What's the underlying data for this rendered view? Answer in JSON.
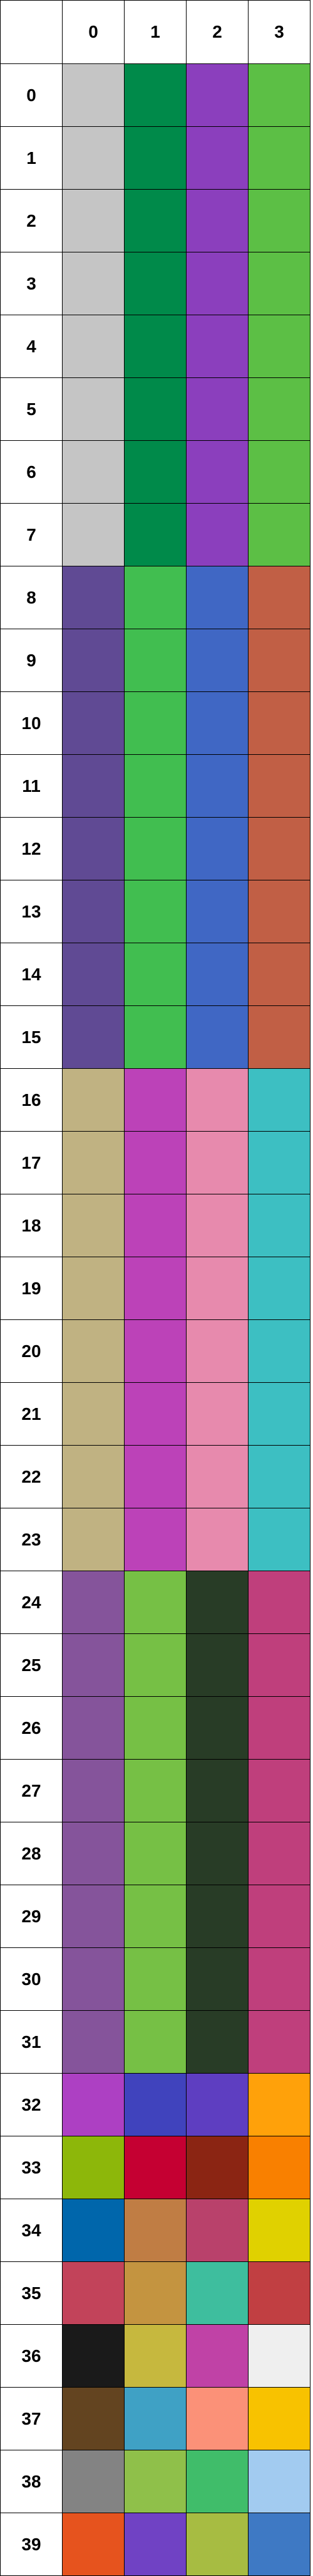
{
  "corner_label": "",
  "columns": [
    "0",
    "1",
    "2",
    "3"
  ],
  "rows": [
    {
      "label": "0",
      "colors": [
        "#c5c5c5",
        "#008a4a",
        "#8b3fbd",
        "#5cbf45"
      ]
    },
    {
      "label": "1",
      "colors": [
        "#c5c5c5",
        "#008a4a",
        "#8b3fbd",
        "#5cbf45"
      ]
    },
    {
      "label": "2",
      "colors": [
        "#c5c5c5",
        "#008a4a",
        "#8b3fbd",
        "#5cbf45"
      ]
    },
    {
      "label": "3",
      "colors": [
        "#c5c5c5",
        "#008a4a",
        "#8b3fbd",
        "#5cbf45"
      ]
    },
    {
      "label": "4",
      "colors": [
        "#c5c5c5",
        "#008a4a",
        "#8b3fbd",
        "#5cbf45"
      ]
    },
    {
      "label": "5",
      "colors": [
        "#c5c5c5",
        "#008a4a",
        "#8b3fbd",
        "#5cbf45"
      ]
    },
    {
      "label": "6",
      "colors": [
        "#c5c5c5",
        "#008a4a",
        "#8b3fbd",
        "#5cbf45"
      ]
    },
    {
      "label": "7",
      "colors": [
        "#c5c5c5",
        "#008a4a",
        "#8b3fbd",
        "#5cbf45"
      ]
    },
    {
      "label": "8",
      "colors": [
        "#604a94",
        "#41be50",
        "#4067c4",
        "#c15f45"
      ]
    },
    {
      "label": "9",
      "colors": [
        "#604a94",
        "#41be50",
        "#4067c4",
        "#c15f45"
      ]
    },
    {
      "label": "10",
      "colors": [
        "#604a94",
        "#41be50",
        "#4067c4",
        "#c15f45"
      ]
    },
    {
      "label": "11",
      "colors": [
        "#604a94",
        "#41be50",
        "#4067c4",
        "#c15f45"
      ]
    },
    {
      "label": "12",
      "colors": [
        "#604a94",
        "#41be50",
        "#4067c4",
        "#c15f45"
      ]
    },
    {
      "label": "13",
      "colors": [
        "#604a94",
        "#41be50",
        "#4067c4",
        "#c15f45"
      ]
    },
    {
      "label": "14",
      "colors": [
        "#604a94",
        "#41be50",
        "#4067c4",
        "#c15f45"
      ]
    },
    {
      "label": "15",
      "colors": [
        "#604a94",
        "#41be50",
        "#4067c4",
        "#c15f45"
      ]
    },
    {
      "label": "16",
      "colors": [
        "#c0b282",
        "#bc42b8",
        "#e78aad",
        "#3dbfc2"
      ]
    },
    {
      "label": "17",
      "colors": [
        "#c0b282",
        "#bc42b8",
        "#e78aad",
        "#3dbfc2"
      ]
    },
    {
      "label": "18",
      "colors": [
        "#c0b282",
        "#bc42b8",
        "#e78aad",
        "#3dbfc2"
      ]
    },
    {
      "label": "19",
      "colors": [
        "#c0b282",
        "#bc42b8",
        "#e78aad",
        "#3dbfc2"
      ]
    },
    {
      "label": "20",
      "colors": [
        "#c0b282",
        "#bc42b8",
        "#e78aad",
        "#3dbfc2"
      ]
    },
    {
      "label": "21",
      "colors": [
        "#c0b282",
        "#bc42b8",
        "#e78aad",
        "#3dbfc2"
      ]
    },
    {
      "label": "22",
      "colors": [
        "#c0b282",
        "#bc42b8",
        "#e78aad",
        "#3dbfc2"
      ]
    },
    {
      "label": "23",
      "colors": [
        "#c0b282",
        "#bc42b8",
        "#e78aad",
        "#3dbfc2"
      ]
    },
    {
      "label": "24",
      "colors": [
        "#85549b",
        "#76c045",
        "#283c26",
        "#bf3f7c"
      ]
    },
    {
      "label": "25",
      "colors": [
        "#85549b",
        "#76c045",
        "#283c26",
        "#bf3f7c"
      ]
    },
    {
      "label": "26",
      "colors": [
        "#85549b",
        "#76c045",
        "#283c26",
        "#bf3f7c"
      ]
    },
    {
      "label": "27",
      "colors": [
        "#85549b",
        "#76c045",
        "#283c26",
        "#bf3f7c"
      ]
    },
    {
      "label": "28",
      "colors": [
        "#85549b",
        "#76c045",
        "#283c26",
        "#bf3f7c"
      ]
    },
    {
      "label": "29",
      "colors": [
        "#85549b",
        "#76c045",
        "#283c26",
        "#bf3f7c"
      ]
    },
    {
      "label": "30",
      "colors": [
        "#85549b",
        "#76c045",
        "#283c26",
        "#bf3f7c"
      ]
    },
    {
      "label": "31",
      "colors": [
        "#85549b",
        "#76c045",
        "#283c26",
        "#bf3f7c"
      ]
    },
    {
      "label": "32",
      "colors": [
        "#ad40c3",
        "#4043bd",
        "#5e3ec1",
        "#ffa10a"
      ]
    },
    {
      "label": "33",
      "colors": [
        "#8db70a",
        "#c50032",
        "#8b2513",
        "#f98000"
      ]
    },
    {
      "label": "34",
      "colors": [
        "#0066ab",
        "#c07d44",
        "#b9416b",
        "#e0d100"
      ]
    },
    {
      "label": "35",
      "colors": [
        "#c2435a",
        "#c49440",
        "#3ebe9e",
        "#c13f42"
      ]
    },
    {
      "label": "36",
      "colors": [
        "#1a1a1a",
        "#c6b83e",
        "#c042a6",
        "#efefef"
      ]
    },
    {
      "label": "37",
      "colors": [
        "#634420",
        "#3fa1c5",
        "#fb9178",
        "#f8c200"
      ]
    },
    {
      "label": "38",
      "colors": [
        "#838383",
        "#8fc04a",
        "#40bd6a",
        "#a2cbf0"
      ]
    },
    {
      "label": "39",
      "colors": [
        "#e6531e",
        "#7042c4",
        "#a7bc42",
        "#3e79c4"
      ]
    }
  ]
}
